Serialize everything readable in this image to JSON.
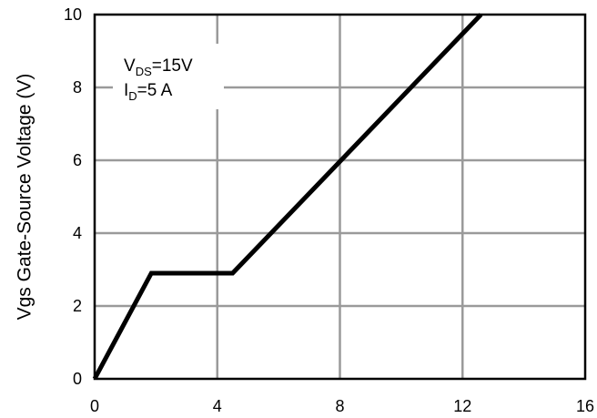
{
  "chart_data": {
    "type": "line",
    "title": "",
    "xlabel": "",
    "ylabel": "Vgs Gate-Source Voltage (V)",
    "xlim": [
      0,
      16
    ],
    "ylim": [
      0,
      10
    ],
    "x_ticks": [
      "0",
      "4",
      "8",
      "12",
      "16"
    ],
    "y_ticks": [
      "0",
      "2",
      "4",
      "6",
      "8",
      "10"
    ],
    "grid": true,
    "series": [
      {
        "x": [
          0,
          1.85,
          4.5,
          12.6
        ],
        "y": [
          0,
          2.9,
          2.9,
          10
        ]
      }
    ],
    "annotations": [
      {
        "main": "V",
        "sub": "DS",
        "rest": "=15V"
      },
      {
        "main": "I",
        "sub": "D",
        "rest": "=5 A"
      }
    ],
    "colors": {
      "line": "#000000",
      "grid": "#9a9a9a",
      "frame": "#000000"
    }
  }
}
